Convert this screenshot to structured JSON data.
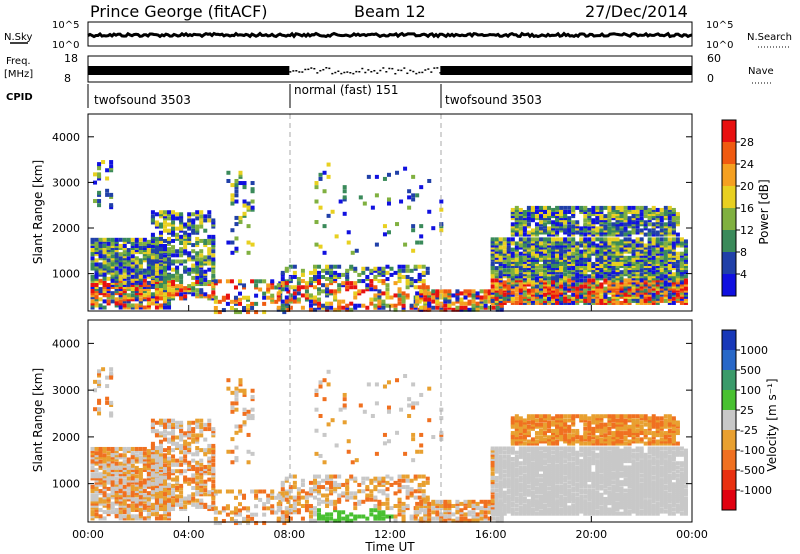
{
  "header": {
    "station": "Prince George (fitACF)",
    "beam": "Beam 12",
    "date": "27/Dec/2014"
  },
  "top_panels": {
    "nsky_label": "N.Sky",
    "nsky_ticks": [
      "10^5",
      "10^0"
    ],
    "nsearch_label": "N.Search",
    "nsearch_ticks": [
      "10^5",
      "10^0"
    ],
    "freq_label": "Freq.",
    "freq_unit": "[MHz]",
    "freq_ticks": [
      "18",
      "8"
    ],
    "nave_label": "Nave",
    "nave_ticks": [
      "60",
      "0"
    ],
    "cpid_label": "CPID",
    "cpid_segments": [
      {
        "label": "twofsound 3503",
        "start": 0,
        "end": 8
      },
      {
        "label": "normal (fast) 151",
        "start": 8,
        "end": 14
      },
      {
        "label": "twofsound 3503",
        "start": 14,
        "end": 24
      }
    ]
  },
  "power_colorbar": {
    "label": "Power [dB]",
    "ticks": [
      "28",
      "24",
      "20",
      "16",
      "12",
      "8",
      "4"
    ],
    "colors": [
      "#e81010",
      "#f05a10",
      "#f5a020",
      "#e8d020",
      "#80b040",
      "#3a8a5a",
      "#2040a8",
      "#1010e0"
    ]
  },
  "velocity_colorbar": {
    "label": "Velocity [m s⁻¹]",
    "ticks": [
      "1000",
      "500",
      "100",
      "25",
      "-25",
      "-100",
      "-500",
      "-1000"
    ],
    "colors": [
      "#1838b8",
      "#2868c8",
      "#3a9a6a",
      "#48c030",
      "#c8c8c8",
      "#e8a030",
      "#f07020",
      "#e83010",
      "#e00010"
    ]
  },
  "chart_data": [
    {
      "type": "heatmap",
      "name": "Power",
      "ylabel": "Slant Range [km]",
      "ylim": [
        180,
        4500
      ],
      "yticks": [
        "4000",
        "3000",
        "2000",
        "1000"
      ],
      "xlim": [
        0,
        24
      ],
      "x_ticks": [
        "00:00",
        "04:00",
        "08:00",
        "12:00",
        "16:00",
        "20:00",
        "00:00"
      ]
    },
    {
      "type": "heatmap",
      "name": "Velocity",
      "ylabel": "Slant Range [km]",
      "ylim": [
        180,
        4500
      ],
      "yticks": [
        "4000",
        "3000",
        "2000",
        "1000"
      ],
      "xlim": [
        0,
        24
      ],
      "x_ticks": [
        "00:00",
        "04:00",
        "08:00",
        "12:00",
        "16:00",
        "20:00",
        "00:00"
      ],
      "xlabel": "Time UT"
    }
  ]
}
